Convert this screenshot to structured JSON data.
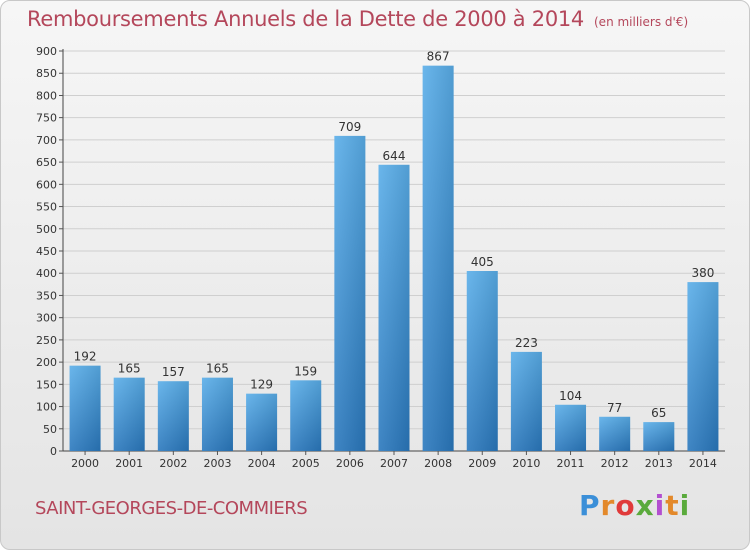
{
  "header": {
    "title": "Remboursements Annuels de la Dette de 2000 à 2014",
    "unit": "(en milliers d'€)"
  },
  "footer": {
    "commune": "SAINT-GEORGES-DE-COMMIERS",
    "logo_text": "Proxiti"
  },
  "colors": {
    "bar_top": "#5aaee9",
    "bar_bottom": "#2a78bd",
    "title": "#b4475b"
  },
  "chart_data": {
    "type": "bar",
    "title": "Remboursements Annuels de la Dette de 2000 à 2014",
    "subtitle": "(en milliers d'€)",
    "xlabel": "",
    "ylabel": "",
    "categories": [
      "2000",
      "2001",
      "2002",
      "2003",
      "2004",
      "2005",
      "2006",
      "2007",
      "2008",
      "2009",
      "2010",
      "2011",
      "2012",
      "2013",
      "2014"
    ],
    "values": [
      192,
      165,
      157,
      165,
      129,
      159,
      709,
      644,
      867,
      405,
      223,
      104,
      77,
      65,
      380
    ],
    "ylim": [
      0,
      900
    ],
    "yticks": [
      0,
      50,
      100,
      150,
      200,
      250,
      300,
      350,
      400,
      450,
      500,
      550,
      600,
      650,
      700,
      750,
      800,
      850,
      900
    ],
    "grid": true,
    "data_labels": true
  }
}
